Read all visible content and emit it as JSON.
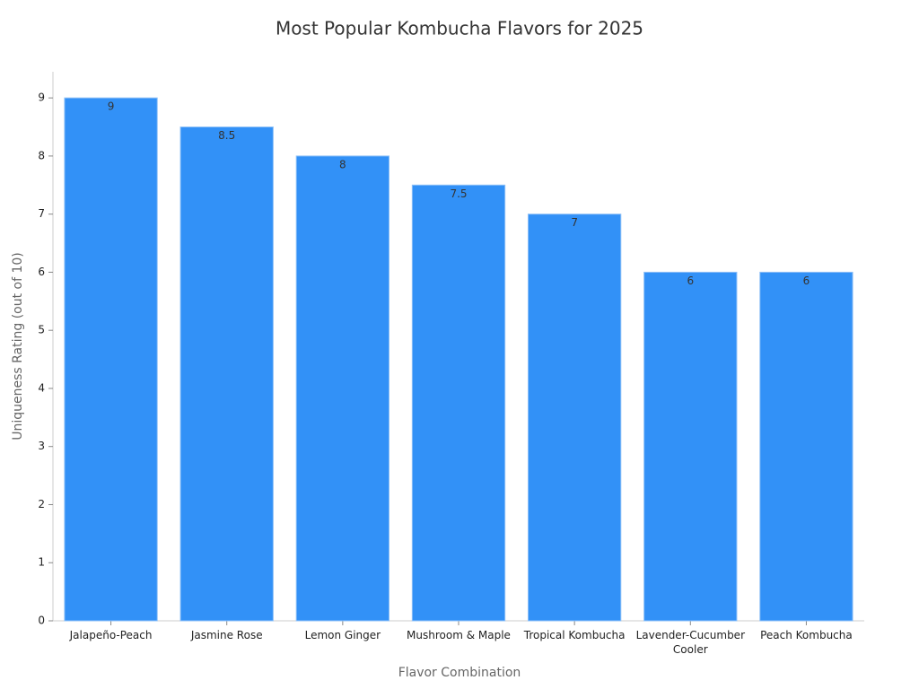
{
  "chart_data": {
    "type": "bar",
    "title": "Most Popular Kombucha Flavors for 2025",
    "x_label": "Flavor Combination",
    "y_label": "Uniqueness Rating (out of 10)",
    "categories": [
      "Jalapeño-Peach",
      "Jasmine Rose",
      "Lemon Ginger",
      "Mushroom & Maple",
      "Tropical Kombucha",
      "Lavender-Cucumber\nCooler",
      "Peach Kombucha"
    ],
    "values": [
      9,
      8.5,
      8,
      7.5,
      7,
      6,
      6
    ],
    "color": "#3291f7",
    "ylim": [
      0,
      9.45
    ],
    "yticks": [
      0,
      1,
      2,
      3,
      4,
      5,
      6,
      7,
      8,
      9
    ],
    "grid": false
  }
}
